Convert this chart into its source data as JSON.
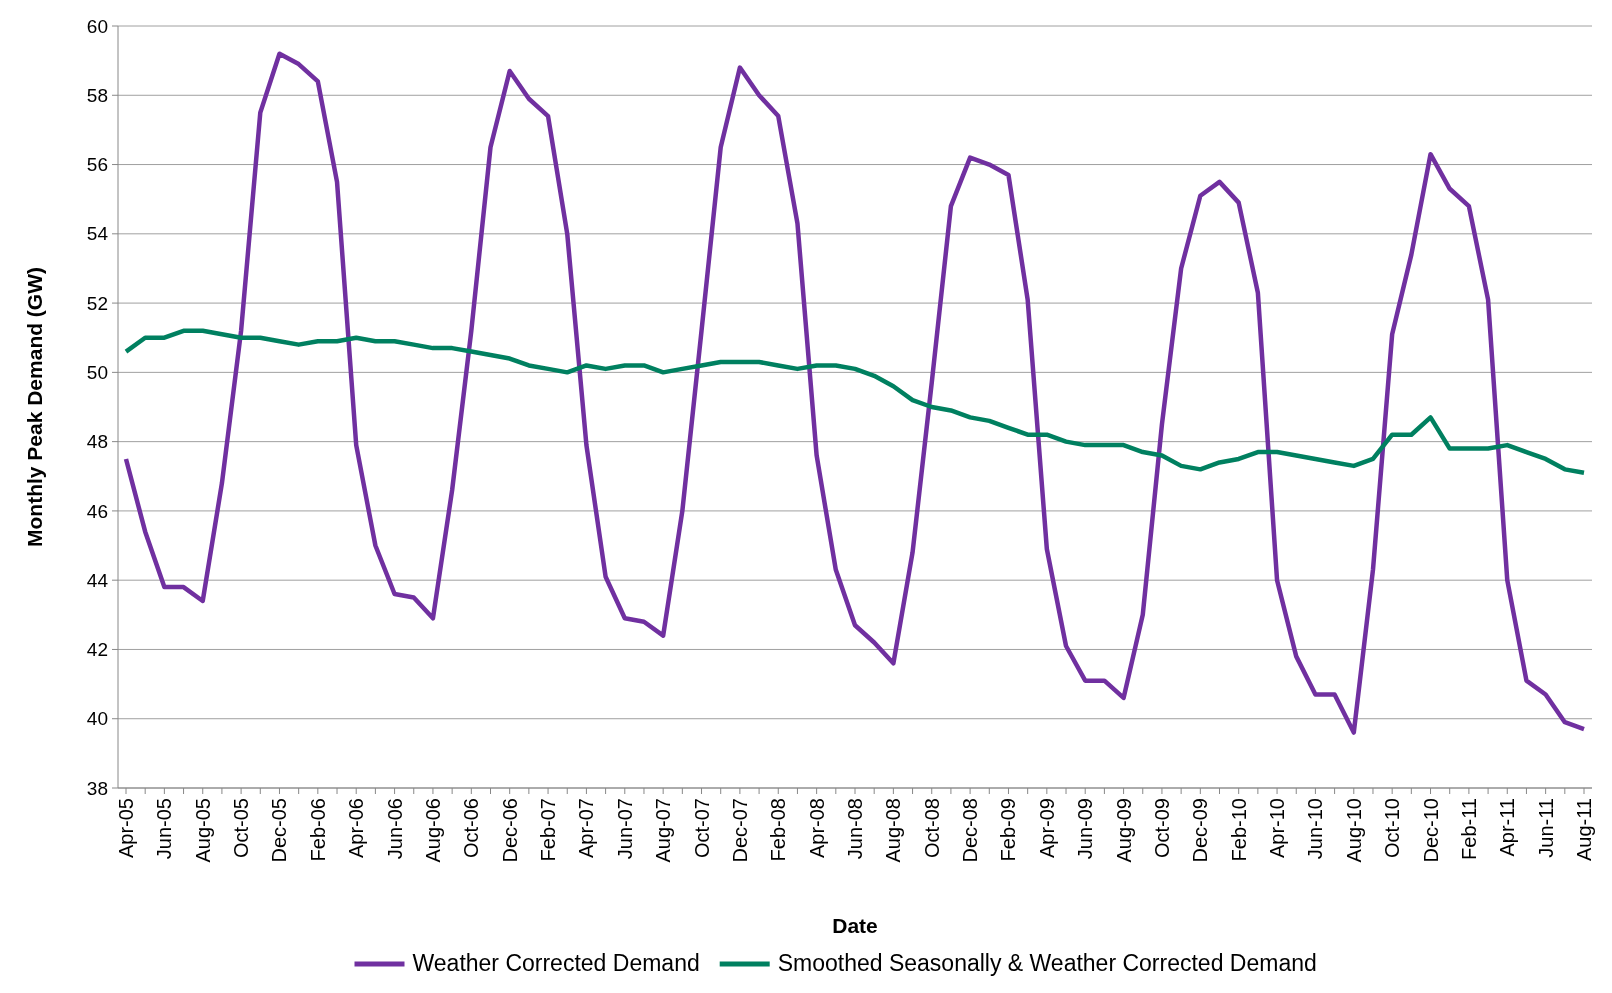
{
  "chart_data": {
    "type": "line",
    "xlabel": "Date",
    "ylabel": "Monthly Peak Demand (GW)",
    "categories": [
      "Apr-05",
      null,
      "Jun-05",
      null,
      "Aug-05",
      null,
      "Oct-05",
      null,
      "Dec-05",
      null,
      "Feb-06",
      null,
      "Apr-06",
      null,
      "Jun-06",
      null,
      "Aug-06",
      null,
      "Oct-06",
      null,
      "Dec-06",
      null,
      "Feb-07",
      null,
      "Apr-07",
      null,
      "Jun-07",
      null,
      "Aug-07",
      null,
      "Oct-07",
      null,
      "Dec-07",
      null,
      "Feb-08",
      null,
      "Apr-08",
      null,
      "Jun-08",
      null,
      "Aug-08",
      null,
      "Oct-08",
      null,
      "Dec-08",
      null,
      "Feb-09",
      null,
      "Apr-09",
      null,
      "Jun-09",
      null,
      "Aug-09",
      null,
      "Oct-09",
      null,
      "Dec-09",
      null,
      "Feb-10",
      null,
      "Apr-10",
      null,
      "Jun-10",
      null,
      "Aug-10",
      null,
      "Oct-10",
      null,
      "Dec-10",
      null,
      "Feb-11",
      null,
      "Apr-11",
      null,
      "Jun-11",
      null,
      "Aug-11"
    ],
    "series": [
      {
        "name": "Weather Corrected Demand",
        "color": "#7030a0",
        "values": [
          47.5,
          45.4,
          43.8,
          43.8,
          43.4,
          46.8,
          51.2,
          57.5,
          59.2,
          58.9,
          58.4,
          55.5,
          47.9,
          45.0,
          43.6,
          43.5,
          42.9,
          46.6,
          51.2,
          56.5,
          58.7,
          57.9,
          57.4,
          54.0,
          47.9,
          44.1,
          42.9,
          42.8,
          42.4,
          46.0,
          51.2,
          56.5,
          58.8,
          58.0,
          57.4,
          54.3,
          47.6,
          44.3,
          42.7,
          42.2,
          41.6,
          44.8,
          49.7,
          54.8,
          56.2,
          56.0,
          55.7,
          52.1,
          44.9,
          42.1,
          41.1,
          41.1,
          40.6,
          43.0,
          48.5,
          53.0,
          55.1,
          55.5,
          54.9,
          52.3,
          44.0,
          41.8,
          40.7,
          40.7,
          39.6,
          44.3,
          51.1,
          53.4,
          56.3,
          55.3,
          54.8,
          52.1,
          44.0,
          41.1,
          40.7,
          39.9,
          39.7
        ]
      },
      {
        "name": "Smoothed Seasonally & Weather Corrected Demand",
        "color": "#008060",
        "values": [
          50.6,
          51.0,
          51.0,
          51.2,
          51.2,
          51.1,
          51.0,
          51.0,
          50.9,
          50.8,
          50.9,
          50.9,
          51.0,
          50.9,
          50.9,
          50.8,
          50.7,
          50.7,
          50.6,
          50.5,
          50.4,
          50.2,
          50.1,
          50.0,
          50.2,
          50.1,
          50.2,
          50.2,
          50.0,
          50.1,
          50.2,
          50.3,
          50.3,
          50.3,
          50.2,
          50.1,
          50.2,
          50.2,
          50.1,
          49.9,
          49.6,
          49.2,
          49.0,
          48.9,
          48.7,
          48.6,
          48.4,
          48.2,
          48.2,
          48.0,
          47.9,
          47.9,
          47.9,
          47.7,
          47.6,
          47.3,
          47.2,
          47.4,
          47.5,
          47.7,
          47.7,
          47.6,
          47.5,
          47.4,
          47.3,
          47.5,
          48.2,
          48.2,
          48.7,
          47.8,
          47.8,
          47.8,
          47.9,
          47.7,
          47.5,
          47.2,
          47.1
        ]
      }
    ],
    "ylim": [
      38,
      60
    ],
    "yticks": [
      38,
      40,
      42,
      44,
      46,
      48,
      50,
      52,
      54,
      56,
      58,
      60
    ],
    "grid": "y",
    "legend": "bottom",
    "marker": "none",
    "line_style": "solid"
  }
}
